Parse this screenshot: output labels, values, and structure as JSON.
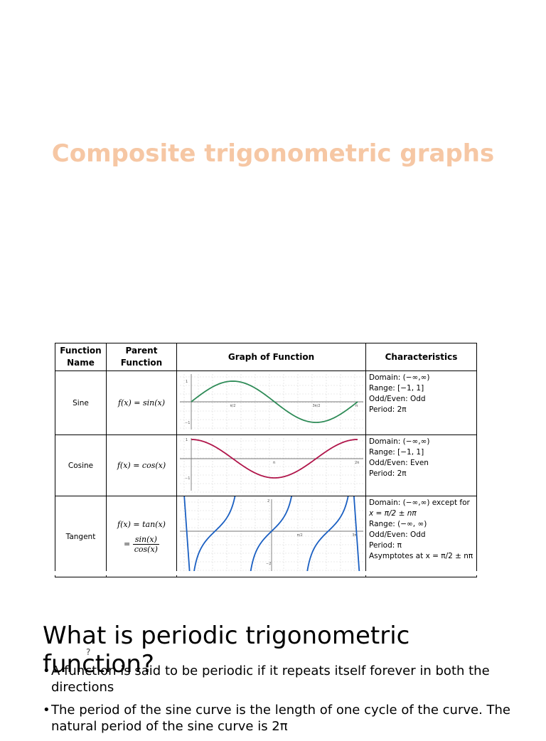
{
  "title": "Composite trigonometric graphs",
  "table": {
    "headers": {
      "name": "Function Name",
      "parent": "Parent Function",
      "graph": "Graph of Function",
      "chars": "Characteristics"
    },
    "rows": [
      {
        "name": "Sine",
        "parent": "f(x) = sin(x)",
        "chars": [
          "Domain: (−∞,∞)",
          "Range: [−1, 1]",
          "Odd/Even: Odd",
          "Period: 2π"
        ],
        "color": "#2e8b57",
        "ticks": [
          "1",
          "−1",
          "π/2",
          "3π/2",
          "π"
        ]
      },
      {
        "name": "Cosine",
        "parent": "f(x) = cos(x)",
        "chars": [
          "Domain: (−∞,∞)",
          "Range: [−1, 1]",
          "Odd/Even: Even",
          "Period: 2π"
        ],
        "color": "#b0154a",
        "ticks": [
          "1",
          "−1",
          "π",
          "2π"
        ]
      },
      {
        "name": "Tangent",
        "parent_top": "f(x) = tan(x)",
        "parent_eq": "=",
        "parent_num": "sin(x)",
        "parent_den": "cos(x)",
        "chars": [
          "Domain: (−∞,∞) except for",
          "x = π/2 ± nπ",
          "Range: (−∞, ∞)",
          "Odd/Even: Odd",
          "Period: π",
          "Asymptotes at x = π/2 ± nπ"
        ],
        "color": "#1a5fc2",
        "ticks": [
          "2",
          "−2",
          "π/2",
          "3π"
        ]
      }
    ]
  },
  "heading": "What is periodic trigonometric function?",
  "question_mark": "?",
  "bullets": [
    "A function is said to be periodic if it repeats itself forever in both the directions",
    "The period of the sine curve is the length of one cycle of the curve. The natural period of the sine curve is 2π"
  ],
  "chart_data": [
    {
      "type": "line",
      "series": [
        {
          "function": "sin(x)"
        }
      ],
      "ylim": [
        -1,
        1
      ]
    },
    {
      "type": "line",
      "series": [
        {
          "function": "cos(x)"
        }
      ],
      "ylim": [
        -1,
        1
      ]
    },
    {
      "type": "line",
      "series": [
        {
          "function": "tan(x)"
        }
      ],
      "ylim": [
        -2,
        2
      ]
    }
  ]
}
